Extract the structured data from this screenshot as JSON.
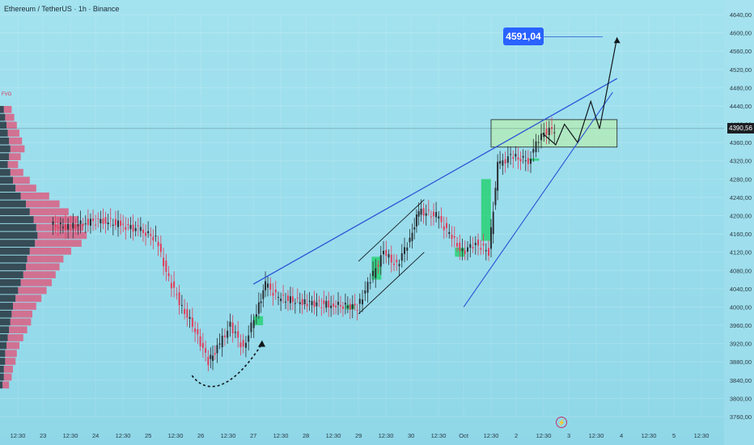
{
  "header": {
    "title": "Ethereum / TetherUS · 1h · Binance",
    "fvg_label": "FVG"
  },
  "price_tags": {
    "target": "4591,04",
    "current": "4390,56"
  },
  "icons": {
    "event": "lightning-icon"
  },
  "colors": {
    "bull": "#2a2f35",
    "bear": "#e03e5c",
    "channel": "#2b52d6",
    "zone": "#b6ecaf"
  },
  "chart_data": {
    "type": "candlestick",
    "title": "Ethereum / TetherUS · 1h · Binance",
    "ylim": [
      3760,
      4640
    ],
    "y_ticks": [
      "4640,00",
      "4600,00",
      "4560,00",
      "4520,00",
      "4480,00",
      "4440,00",
      "4400,00",
      "4360,00",
      "4320,00",
      "4280,00",
      "4240,00",
      "4200,00",
      "4160,00",
      "4120,00",
      "4080,00",
      "4040,00",
      "4000,00",
      "3960,00",
      "3920,00",
      "3880,00",
      "3840,00",
      "3800,00",
      "3760,00"
    ],
    "x_ticks": [
      "12:30",
      "23",
      "12:30",
      "24",
      "12:30",
      "25",
      "12:30",
      "26",
      "12:30",
      "27",
      "12:30",
      "28",
      "12:30",
      "29",
      "12:30",
      "30",
      "12:30",
      "Oct",
      "12:30",
      "2",
      "12:30",
      "3",
      "12:30",
      "4",
      "12:30",
      "5",
      "12:30"
    ],
    "x_dates": [
      "Sep 22 12:30",
      "Sep 23",
      "Sep 23 12:30",
      "Sep 24",
      "Sep 24 12:30",
      "Sep 25",
      "Sep 25 12:30",
      "Sep 26",
      "Sep 26 12:30",
      "Sep 27",
      "Sep 27 12:30",
      "Sep 28",
      "Sep 28 12:30",
      "Sep 29",
      "Sep 29 12:30",
      "Sep 30",
      "Sep 30 12:30",
      "Oct 1",
      "Oct 1 12:30",
      "Oct 2",
      "Oct 2 12:30",
      "Oct 3",
      "Oct 3 12:30",
      "Oct 4",
      "Oct 4 12:30",
      "Oct 5",
      "Oct 5 12:30"
    ],
    "price_path": [
      [
        "Sep 23 04:00",
        4180
      ],
      [
        "Sep 23 12:00",
        4175
      ],
      [
        "Sep 23 20:00",
        4185
      ],
      [
        "Sep 24 04:00",
        4190
      ],
      [
        "Sep 24 12:00",
        4180
      ],
      [
        "Sep 24 20:00",
        4170
      ],
      [
        "Sep 25 04:00",
        4150
      ],
      [
        "Sep 25 10:00",
        4060
      ],
      [
        "Sep 25 16:00",
        4000
      ],
      [
        "Sep 25 22:00",
        3950
      ],
      [
        "Sep 26 04:00",
        3880
      ],
      [
        "Sep 26 08:00",
        3910
      ],
      [
        "Sep 26 14:00",
        3960
      ],
      [
        "Sep 26 20:00",
        3910
      ],
      [
        "Sep 27 02:00",
        3990
      ],
      [
        "Sep 27 06:00",
        4050
      ],
      [
        "Sep 27 12:00",
        4020
      ],
      [
        "Sep 28 00:00",
        4010
      ],
      [
        "Sep 28 12:00",
        4005
      ],
      [
        "Sep 29 00:00",
        4000
      ],
      [
        "Sep 29 06:00",
        4060
      ],
      [
        "Sep 29 12:00",
        4120
      ],
      [
        "Sep 29 18:00",
        4090
      ],
      [
        "Sep 30 00:00",
        4150
      ],
      [
        "Sep 30 04:00",
        4210
      ],
      [
        "Sep 30 12:00",
        4200
      ],
      [
        "Sep 30 18:00",
        4160
      ],
      [
        "Oct 1 00:00",
        4120
      ],
      [
        "Oct 1 06:00",
        4140
      ],
      [
        "Oct 1 12:00",
        4120
      ],
      [
        "Oct 1 16:00",
        4310
      ],
      [
        "Oct 1 22:00",
        4330
      ],
      [
        "Oct 2 06:00",
        4320
      ],
      [
        "Oct 2 12:00",
        4380
      ],
      [
        "Oct 2 18:00",
        4390
      ]
    ],
    "annotations": {
      "target_price": 4591.04,
      "resistance_zone": [
        4350,
        4410
      ],
      "horizontal_level": 4390.56,
      "upper_trendline": [
        [
          "Sep 27 00:00",
          4050
        ],
        [
          "Oct 3 22:00",
          4500
        ]
      ],
      "lower_trendline": [
        [
          "Oct 1 00:00",
          4000
        ],
        [
          "Oct 3 20:00",
          4470
        ]
      ],
      "rising_channel_upper": [
        [
          "Sep 29 00:00",
          4100
        ],
        [
          "Sep 30 06:00",
          4235
        ]
      ],
      "rising_channel_lower": [
        [
          "Sep 29 00:00",
          3985
        ],
        [
          "Sep 30 06:00",
          4120
        ]
      ],
      "projected_path": [
        [
          "Oct 2 12:00",
          4380
        ],
        [
          "Oct 2 18:00",
          4355
        ],
        [
          "Oct 2 22:00",
          4400
        ],
        [
          "Oct 3 04:00",
          4360
        ],
        [
          "Oct 3 10:00",
          4450
        ],
        [
          "Oct 3 14:00",
          4390
        ],
        [
          "Oct 3 22:00",
          4590
        ]
      ],
      "bounce_arrow": [
        [
          "Sep 25 20:00",
          3850
        ],
        [
          "Sep 26 04:00",
          3800
        ],
        [
          "Sep 26 16:00",
          3830
        ],
        [
          "Sep 27 04:00",
          3920
        ]
      ],
      "demand_zones": [
        [
          "Sep 27 00:00",
          3960,
          3980
        ],
        [
          "Sep 28 18:00",
          3995,
          4005
        ],
        [
          "Sep 29 06:00",
          4060,
          4110
        ],
        [
          "Sep 30 20:00",
          4110,
          4130
        ],
        [
          "Oct 1 08:00",
          4145,
          4280
        ],
        [
          "Oct 2 06:00",
          4320,
          4325
        ]
      ]
    },
    "volume_profile": {
      "rows": 36,
      "sell_bias": [
        0.6,
        0.7,
        0.8,
        0.9,
        1.0,
        1.1,
        0.9,
        0.8,
        1.0,
        1.3,
        1.6,
        2.2,
        2.6,
        3.0,
        3.4,
        3.6,
        3.8,
        3.6,
        3.2,
        2.8,
        2.6,
        2.5,
        2.4,
        2.2,
        2.0,
        1.8,
        1.6,
        1.6,
        1.4,
        1.2,
        1.0,
        0.9,
        0.8,
        0.7,
        0.6,
        0.5
      ],
      "buy_bias": [
        0.3,
        0.4,
        0.5,
        0.6,
        0.7,
        0.8,
        0.7,
        0.6,
        0.8,
        1.0,
        1.2,
        1.6,
        2.0,
        2.3,
        2.6,
        2.8,
        2.9,
        2.7,
        2.3,
        2.1,
        2.0,
        1.8,
        1.6,
        1.4,
        1.2,
        1.0,
        0.9,
        0.8,
        0.7,
        0.6,
        0.5,
        0.4,
        0.4,
        0.3,
        0.3,
        0.2
      ]
    }
  }
}
